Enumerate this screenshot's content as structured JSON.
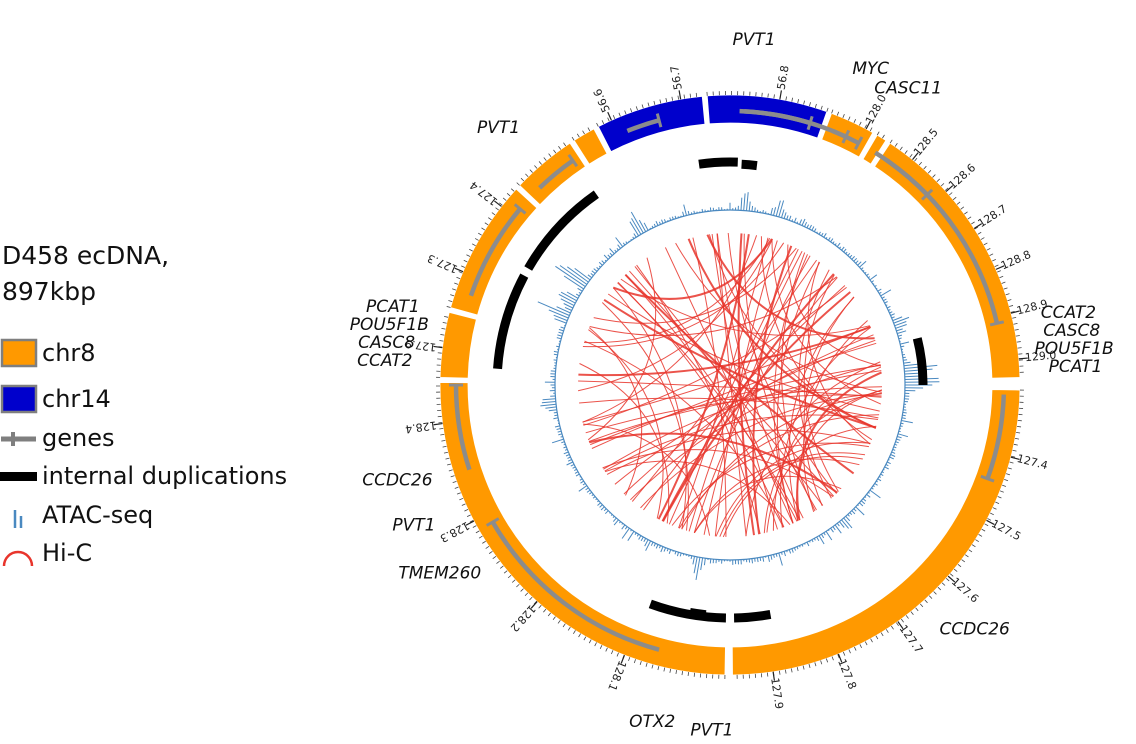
{
  "title": {
    "line1": "D458 ecDNA,",
    "line2": "897kbp"
  },
  "legend": [
    {
      "label": "chr8",
      "icon": "chr8-swatch-icon",
      "color": "#ff9900"
    },
    {
      "label": "chr14",
      "icon": "chr14-swatch-icon",
      "color": "#0000cc"
    },
    {
      "label": "genes",
      "icon": "gene-glyph-icon",
      "color": "#7f7f7f"
    },
    {
      "label": "internal duplications",
      "icon": "duplication-bar-icon",
      "color": "#000000"
    },
    {
      "label": "ATAC-seq",
      "icon": "atac-signal-icon",
      "color": "#4a89c0"
    },
    {
      "label": "Hi-C",
      "icon": "hic-arc-icon",
      "color": "#e8352c"
    }
  ],
  "segments": [
    {
      "id": "segA",
      "chrom": "chr8",
      "start_deg": 91,
      "end_deg": 179.5,
      "start_val": 127.3,
      "end_val": 127.96,
      "ticks": [
        127.4,
        127.5,
        127.6,
        127.7,
        127.8,
        127.9
      ]
    },
    {
      "id": "segB",
      "chrom": "chr8",
      "start_deg": 181,
      "end_deg": 270.5,
      "start_val": 128.0,
      "end_val": 128.44,
      "ticks": [
        128.1,
        128.2,
        128.3,
        128.4
      ]
    },
    {
      "id": "segC",
      "chrom": "chr8",
      "start_deg": 271.5,
      "end_deg": 284.5,
      "start_val": 127.85,
      "end_val": 127.96,
      "ticks": [
        127.9
      ]
    },
    {
      "id": "segD",
      "chrom": "chr8",
      "start_deg": 285.5,
      "end_deg": 312.5,
      "start_val": 127.25,
      "end_val": 127.43,
      "ticks": [
        127.3,
        127.4
      ]
    },
    {
      "id": "segE",
      "chrom": "chr8",
      "start_deg": 313.5,
      "end_deg": 326.5,
      "start_val": 127.24,
      "end_val": 127.31,
      "ticks": []
    },
    {
      "id": "segF",
      "chrom": "chr8",
      "start_deg": 327.5,
      "end_deg": 332,
      "start_val": 127.89,
      "end_val": 127.92,
      "ticks": []
    },
    {
      "id": "segG",
      "chrom": "chr14",
      "start_deg": 333,
      "end_deg": 354.5,
      "start_val": 56.58,
      "end_val": 56.73,
      "ticks": [
        56.6,
        56.7
      ]
    },
    {
      "id": "segH",
      "chrom": "chr14",
      "start_deg": 355.5,
      "end_deg": 379.5,
      "start_val": 56.74,
      "end_val": 56.84,
      "ticks": [
        56.8
      ]
    },
    {
      "id": "segI",
      "chrom": "chr8",
      "start_deg": 380.5,
      "end_deg": 389.5,
      "start_val": 127.95,
      "end_val": 128.01,
      "ticks": [
        128.0
      ]
    },
    {
      "id": "segJ",
      "chrom": "chr8",
      "start_deg": 390.5,
      "end_deg": 392.5,
      "start_val": 128.41,
      "end_val": 128.43,
      "ticks": []
    },
    {
      "id": "segK",
      "chrom": "chr8",
      "start_deg": 393.5,
      "end_deg": 448.5,
      "start_val": 128.44,
      "end_val": 129.04,
      "ticks": [
        128.5,
        128.6,
        128.7,
        128.8,
        128.9,
        129.0
      ]
    }
  ],
  "gene_labels": [
    {
      "text": "PVT1",
      "deg": 4
    },
    {
      "text": "MYC",
      "deg": 24
    },
    {
      "text": "CASC11",
      "deg": 31
    },
    {
      "text": "CCAT2",
      "deg": 78
    },
    {
      "text": "CASC8",
      "deg": 81
    },
    {
      "text": "POU5F1B",
      "deg": 84
    },
    {
      "text": "PCAT1",
      "deg": 87
    },
    {
      "text": "CCDC26",
      "deg": 135
    },
    {
      "text": "PVT1",
      "deg": 183
    },
    {
      "text": "OTX2",
      "deg": 193
    },
    {
      "text": "TMEM260",
      "deg": 237
    },
    {
      "text": "PVT1",
      "deg": 246
    },
    {
      "text": "CCDC26",
      "deg": 254
    },
    {
      "text": "CCAT2",
      "deg": 274
    },
    {
      "text": "CASC8",
      "deg": 277
    },
    {
      "text": "POU5F1B",
      "deg": 280
    },
    {
      "text": "PCAT1",
      "deg": 283
    },
    {
      "text": "PVT1",
      "deg": 318
    }
  ],
  "colors": {
    "chr8": "#ff9900",
    "chr14": "#0000cc",
    "gene": "#8c8c8c",
    "dup": "#000000",
    "atac": "#4a89c0",
    "hic": "#e8352c",
    "outline": "#7f7f7f"
  }
}
